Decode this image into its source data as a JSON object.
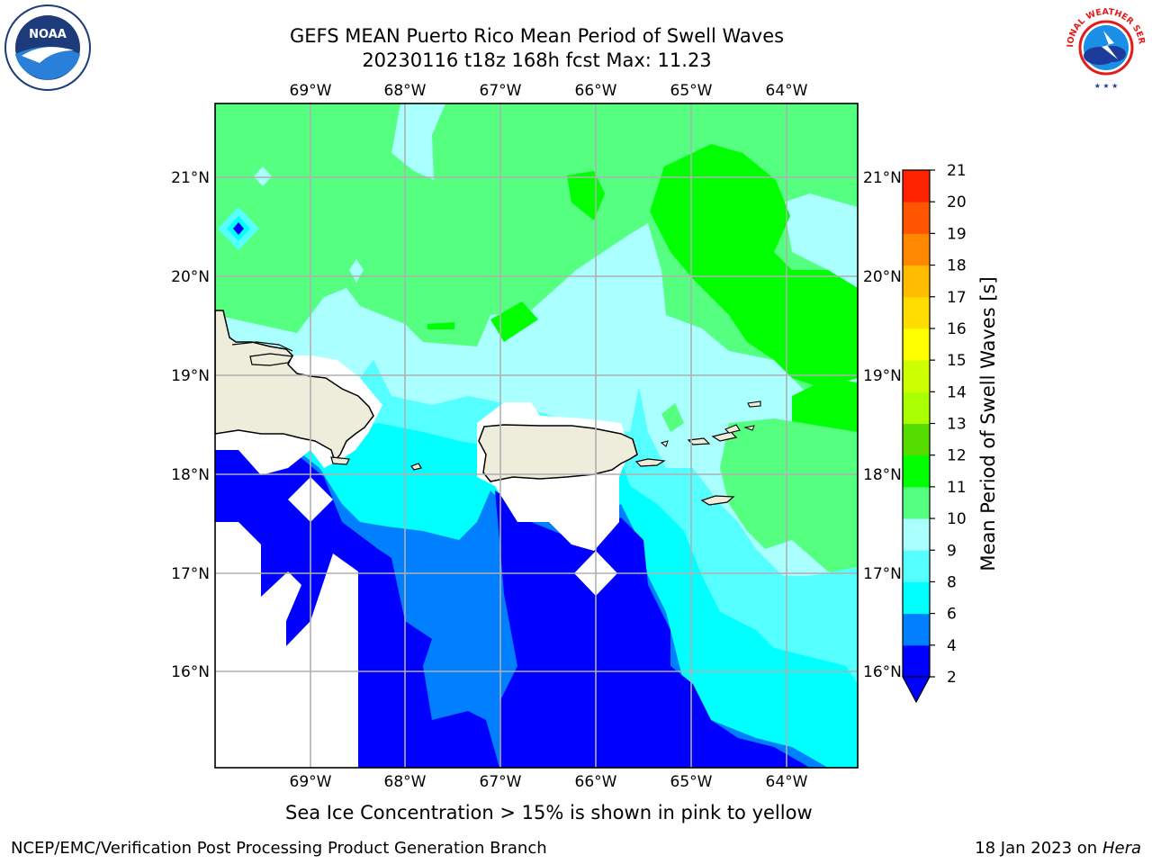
{
  "title": {
    "line1": "GEFS MEAN Puerto Rico Mean Period of Swell Waves",
    "line2": "20230116 t18z 168h fcst   Max: 11.23"
  },
  "map": {
    "lon_labels": [
      "69°W",
      "68°W",
      "67°W",
      "66°W",
      "65°W",
      "64°W"
    ],
    "lat_labels": [
      "21°N",
      "20°N",
      "19°N",
      "18°N",
      "17°N",
      "16°N"
    ]
  },
  "colorbar": {
    "title": "Mean Period of Swell Waves [s]",
    "ticks": [
      "2",
      "4",
      "6",
      "8",
      "9",
      "10",
      "11",
      "12",
      "13",
      "14",
      "15",
      "16",
      "17",
      "18",
      "19",
      "20",
      "21"
    ],
    "colors": [
      "#0000ff",
      "#0080ff",
      "#00ffff",
      "#55ffff",
      "#aaffff",
      "#55ff80",
      "#00ff00",
      "#55dd00",
      "#aaff00",
      "#ccff00",
      "#ffff00",
      "#ffdd00",
      "#ffbb00",
      "#ff8800",
      "#ff5500",
      "#ff2200",
      "#ff0000"
    ],
    "over_color": "#ff0000",
    "under_color": "#0000ff"
  },
  "fill_colors": {
    "land": "#eeeddb",
    "missing": "#ffffff",
    "deep_blue": "#0000ff",
    "mid_blue": "#0080ff",
    "cyan": "#00ffff",
    "light_cyan": "#55ffff",
    "pale_cyan": "#aaffff",
    "light_green": "#55ff80",
    "green": "#00ff00"
  },
  "logos": {
    "noaa_text": "NOAA",
    "nws_text": "NATIONAL WEATHER SERVICE"
  },
  "note": "Sea Ice Concentration > 15% is shown in pink to yellow",
  "footer": {
    "left": "NCEP/EMC/Verification Post Processing Product Generation Branch",
    "right_prefix": "18 Jan 2023 on",
    "right_machine": "Hera"
  }
}
